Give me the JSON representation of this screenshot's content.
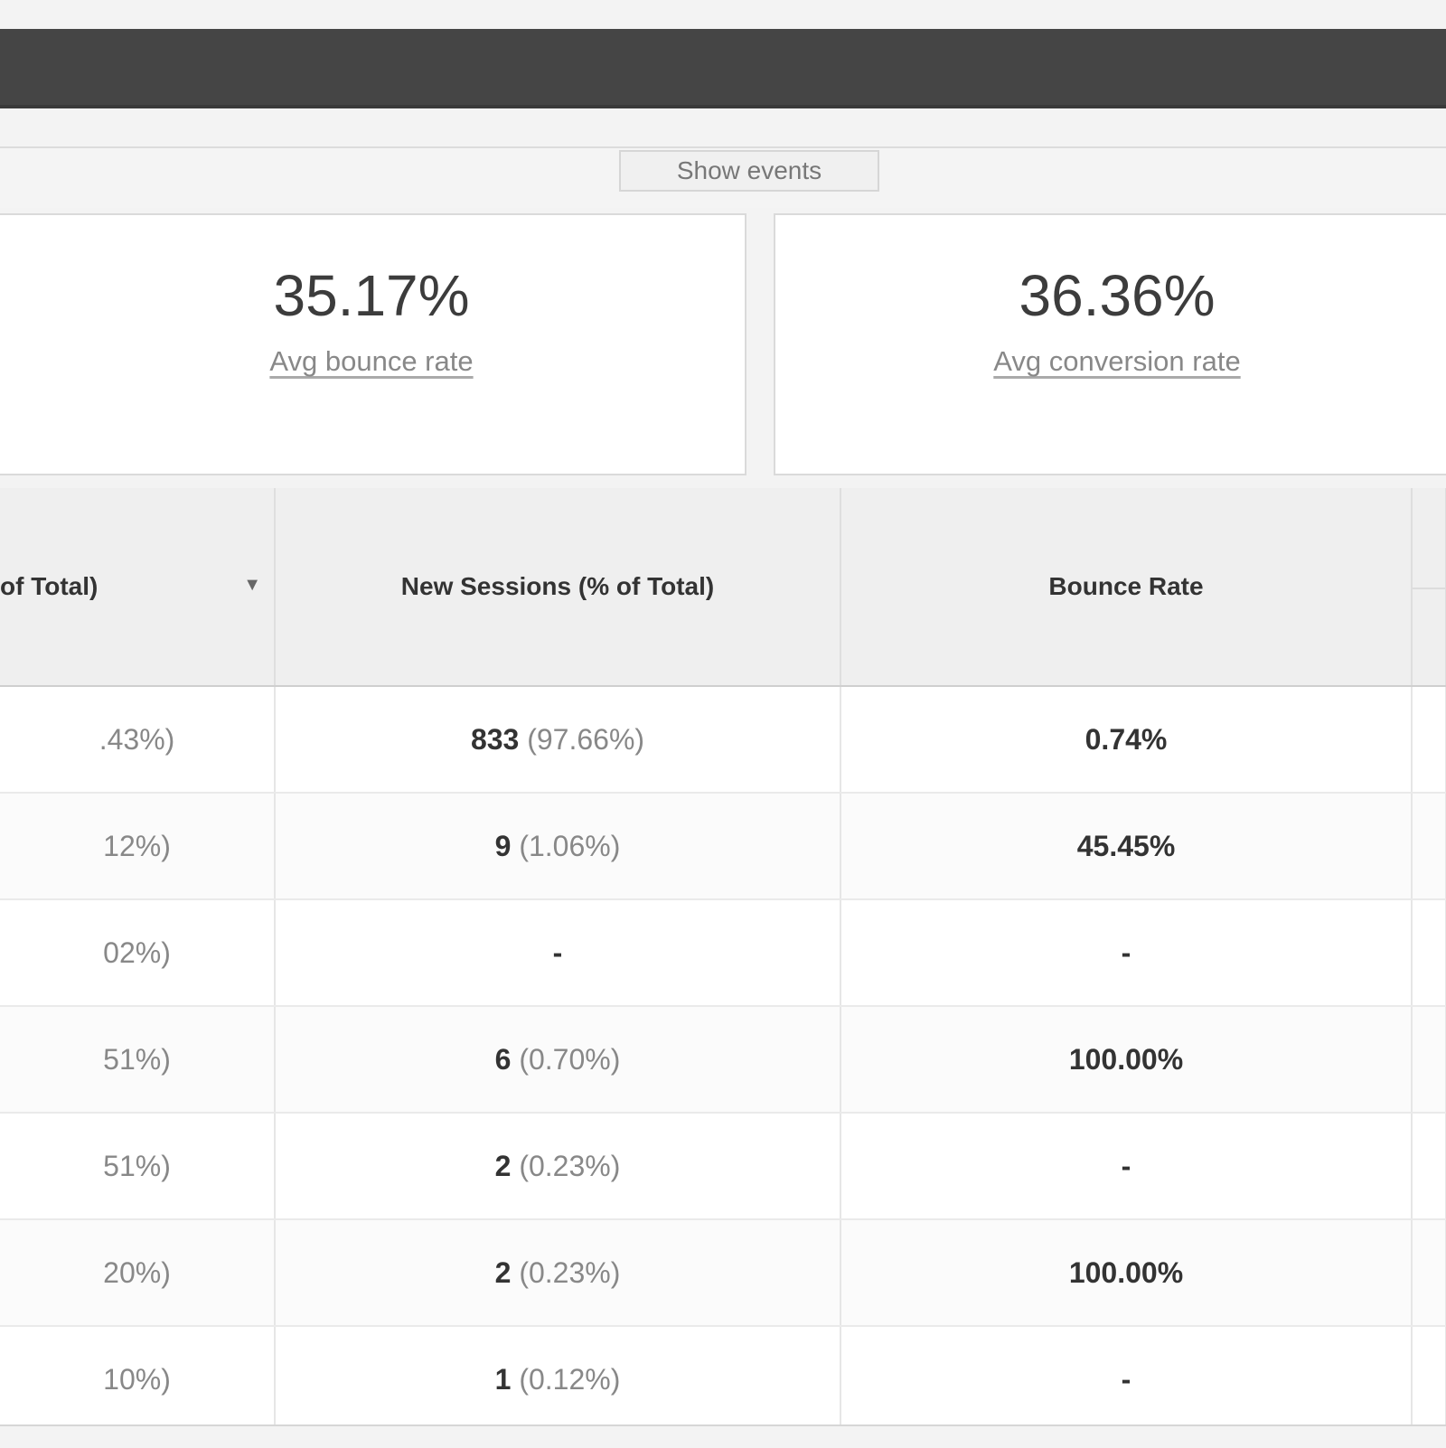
{
  "toolbar": {
    "show_events_label": "Show events"
  },
  "cards": [
    {
      "value": "35.17%",
      "label": "Avg bounce rate"
    },
    {
      "value": "36.36%",
      "label": "Avg conversion rate"
    }
  ],
  "table": {
    "headers": [
      "of Total)",
      "New Sessions (% of Total)",
      "Bounce Rate",
      ""
    ],
    "rows": [
      {
        "c0": ".43%)",
        "new_num": "833",
        "new_pct": "(97.66%)",
        "bounce": "0.74%"
      },
      {
        "c0": "12%)",
        "new_num": "9",
        "new_pct": "(1.06%)",
        "bounce": "45.45%"
      },
      {
        "c0": "02%)",
        "new_num": "-",
        "new_pct": "",
        "bounce": "-"
      },
      {
        "c0": "51%)",
        "new_num": "6",
        "new_pct": "(0.70%)",
        "bounce": "100.00%"
      },
      {
        "c0": "51%)",
        "new_num": "2",
        "new_pct": "(0.23%)",
        "bounce": "-"
      },
      {
        "c0": "20%)",
        "new_num": "2",
        "new_pct": "(0.23%)",
        "bounce": "100.00%"
      },
      {
        "c0": "10%)",
        "new_num": "1",
        "new_pct": "(0.12%)",
        "bounce": "-"
      }
    ]
  }
}
